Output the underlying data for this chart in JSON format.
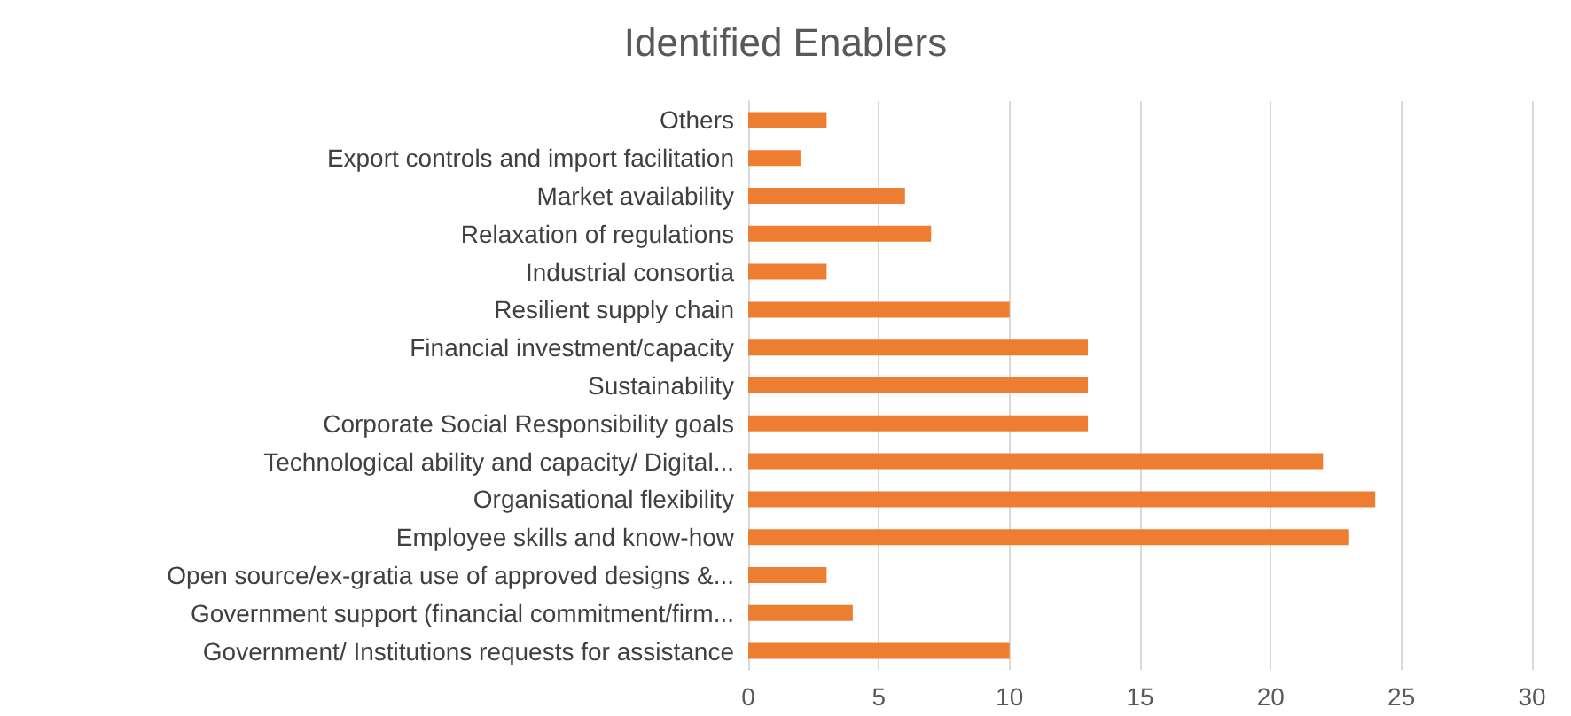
{
  "chart_data": {
    "type": "bar",
    "orientation": "horizontal",
    "title": "Identified Enablers",
    "categories": [
      "Others",
      "Export controls and import facilitation",
      "Market availability",
      "Relaxation of regulations",
      "Industrial consortia",
      "Resilient supply chain",
      "Financial investment/capacity",
      "Sustainability",
      "Corporate Social Responsibility goals",
      "Technological ability and capacity/ Digital...",
      "Organisational flexibility",
      "Employee skills and know-how",
      "Open source/ex-gratia use of approved designs &...",
      "Government support (financial commitment/firm...",
      "Government/ Institutions requests for assistance"
    ],
    "values": [
      3,
      2,
      6,
      7,
      3,
      10,
      13,
      13,
      13,
      22,
      24,
      23,
      3,
      4,
      10
    ],
    "color": "#ed7d31",
    "xlim": [
      0,
      30
    ],
    "xticks": [
      0,
      5,
      10,
      15,
      20,
      25,
      30
    ],
    "grid": "x"
  }
}
